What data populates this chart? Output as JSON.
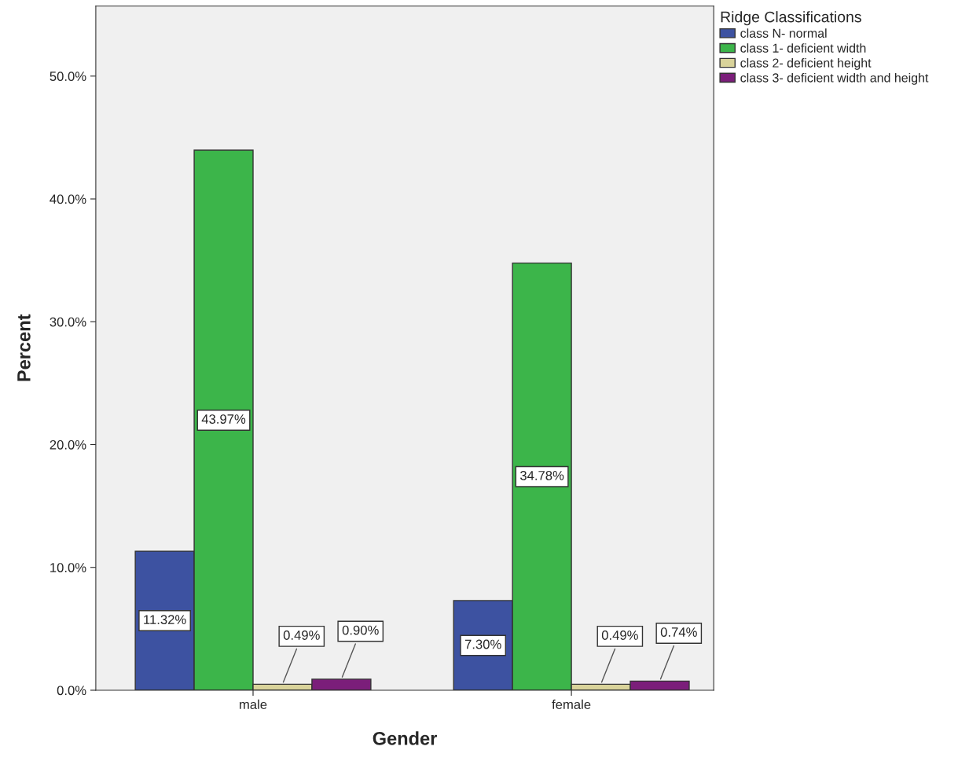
{
  "chart_data": {
    "type": "bar",
    "xlabel": "Gender",
    "ylabel": "Percent",
    "legend_title": "Ridge Classifications",
    "categories": [
      "male",
      "female"
    ],
    "series": [
      {
        "name": "class N- normal",
        "color": "#3d52a1",
        "values": [
          11.32,
          7.3
        ],
        "value_labels": [
          "11.32%",
          "7.30%"
        ]
      },
      {
        "name": "class 1- deficient width",
        "color": "#3cb54a",
        "values": [
          43.97,
          34.78
        ],
        "value_labels": [
          "43.97%",
          "34.78%"
        ]
      },
      {
        "name": "class 2- deficient height",
        "color": "#d9d39a",
        "values": [
          0.49,
          0.49
        ],
        "value_labels": [
          "0.49%",
          "0.49%"
        ]
      },
      {
        "name": "class 3- deficient width and height",
        "color": "#7b1e7a",
        "values": [
          0.9,
          0.74
        ],
        "value_labels": [
          "0.90%",
          "0.74%"
        ]
      }
    ],
    "ylim": [
      0,
      55.7
    ],
    "yticks": [
      {
        "value": 0,
        "label": "0.0%"
      },
      {
        "value": 10,
        "label": "10.0%"
      },
      {
        "value": 20,
        "label": "20.0%"
      },
      {
        "value": 30,
        "label": "30.0%"
      },
      {
        "value": 40,
        "label": "40.0%"
      },
      {
        "value": 50,
        "label": "50.0%"
      }
    ],
    "grid": false,
    "legend": "top right"
  }
}
